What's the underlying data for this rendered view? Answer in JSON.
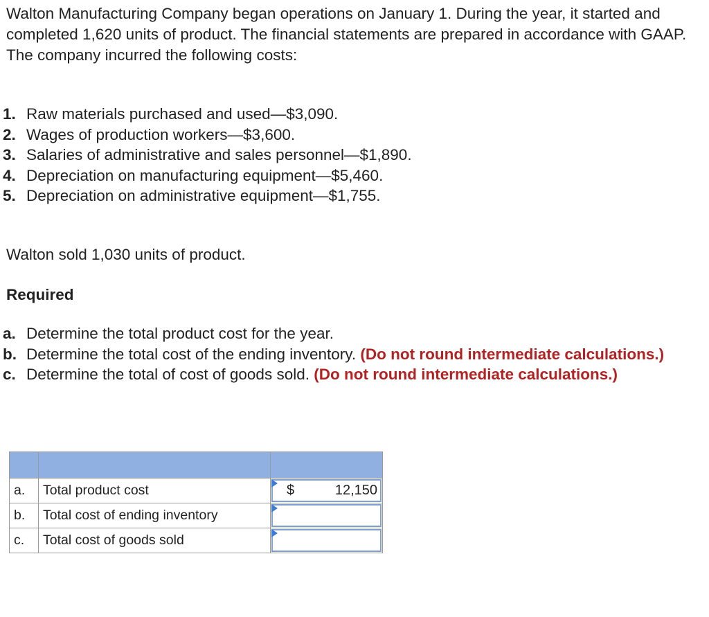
{
  "intro": "Walton Manufacturing Company began operations on January 1. During the year, it started and completed 1,620 units of product. The financial statements are prepared in accordance with GAAP. The company incurred the following costs:",
  "costs": [
    {
      "num": "1.",
      "text": "Raw materials purchased and used—$3,090."
    },
    {
      "num": "2.",
      "text": "Wages of production workers—$3,600."
    },
    {
      "num": "3.",
      "text": "Salaries of administrative and sales personnel—$1,890."
    },
    {
      "num": "4.",
      "text": "Depreciation on manufacturing equipment—$5,460."
    },
    {
      "num": "5.",
      "text": "Depreciation on administrative equipment—$1,755."
    }
  ],
  "sold_text": "Walton sold 1,030 units of product.",
  "required_heading": "Required",
  "requirements": [
    {
      "letter": "a.",
      "text": "Determine the total product cost for the year.",
      "note": ""
    },
    {
      "letter": "b.",
      "text": "Determine the total cost of the ending inventory.",
      "note": "(Do not round intermediate calculations.)"
    },
    {
      "letter": "c.",
      "text": "Determine the total of cost of goods sold.",
      "note": "(Do not round intermediate calculations.)"
    }
  ],
  "answer_table": {
    "rows": [
      {
        "letter": "a.",
        "label": "Total product cost",
        "currency": "$",
        "value": "12,150"
      },
      {
        "letter": "b.",
        "label": "Total cost of ending inventory",
        "currency": "",
        "value": ""
      },
      {
        "letter": "c.",
        "label": "Total cost of goods sold",
        "currency": "",
        "value": ""
      }
    ]
  }
}
